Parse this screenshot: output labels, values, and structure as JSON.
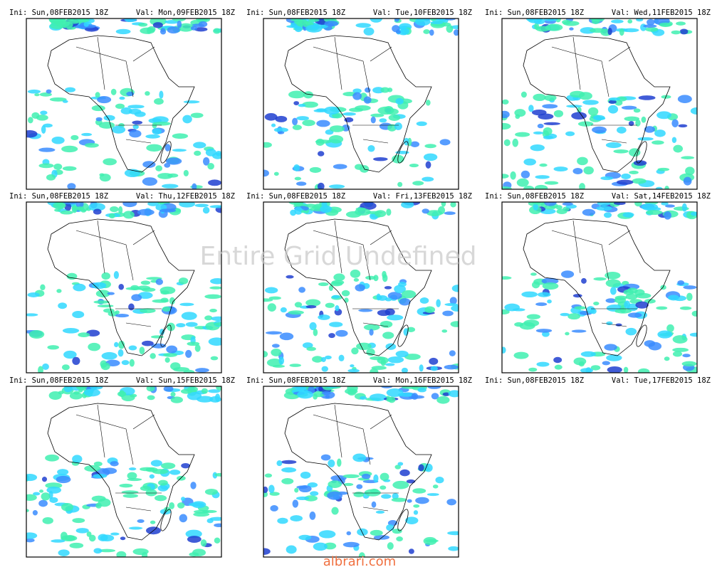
{
  "panels": [
    {
      "ini": "Ini: Sun,08FEB2015 18Z",
      "val": "Val: Mon,09FEB2015 18Z"
    },
    {
      "ini": "Ini: Sun,08FEB2015 18Z",
      "val": "Val: Tue,10FEB2015 18Z"
    },
    {
      "ini": "Ini: Sun,08FEB2015 18Z",
      "val": "Val: Wed,11FEB2015 18Z"
    },
    {
      "ini": "Ini: Sun,08FEB2015 18Z",
      "val": "Val: Thu,12FEB2015 18Z"
    },
    {
      "ini": "Ini: Sun,08FEB2015 18Z",
      "val": "Val: Fri,13FEB2015 18Z"
    },
    {
      "ini": "Ini: Sun,08FEB2015 18Z",
      "val": "Val: Sat,14FEB2015 18Z"
    },
    {
      "ini": "Ini: Sun,08FEB2015 18Z",
      "val": "Val: Sun,15FEB2015 18Z"
    },
    {
      "ini": "Ini: Sun,08FEB2015 18Z",
      "val": "Val: Mon,16FEB2015 18Z"
    },
    {
      "ini": "Ini: Sun,08FEB2015 18Z",
      "val": "Val: Tue,17FEB2015 18Z"
    }
  ],
  "undefined_message": "Entire Grid Undefined",
  "watermark": "albrari.com"
}
